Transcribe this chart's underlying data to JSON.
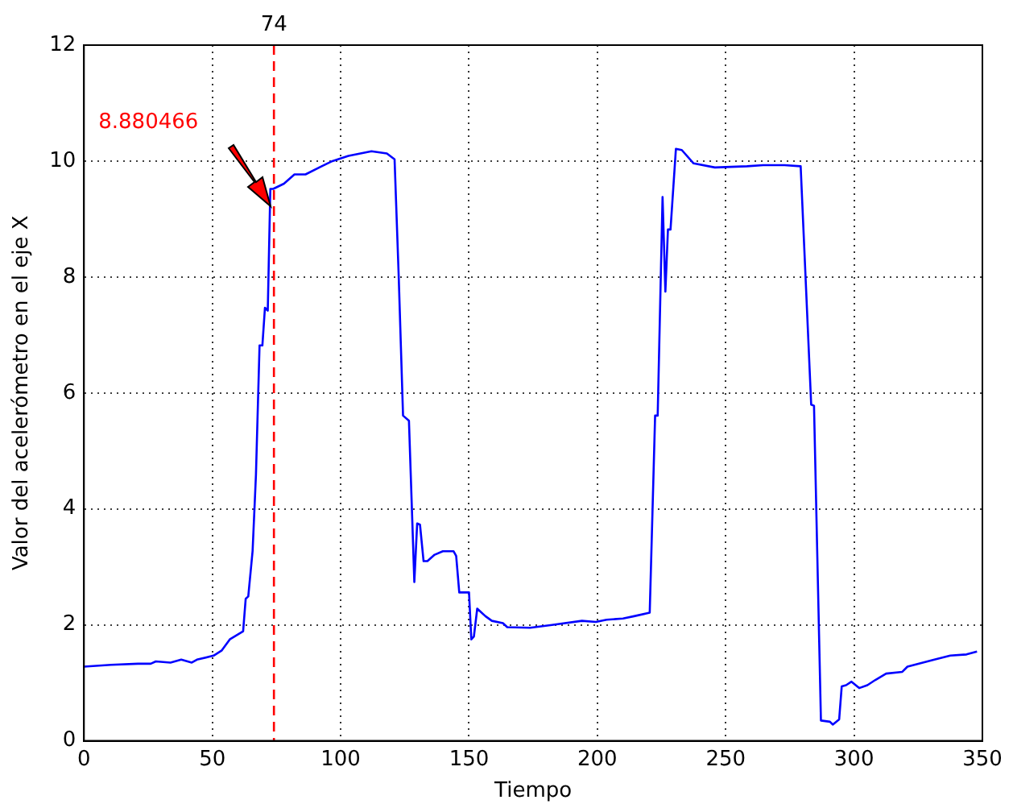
{
  "chart_data": {
    "type": "line",
    "xlabel": "Tiempo",
    "ylabel": "Valor del acelerómetro en el eje X",
    "xlim": [
      0,
      350
    ],
    "xticks": [
      0,
      50,
      100,
      150,
      200,
      250,
      300,
      350
    ],
    "ylim": [
      0,
      12
    ],
    "yticks": [
      0,
      2,
      4,
      6,
      8,
      10,
      12
    ],
    "grid": true,
    "legend": false,
    "marker": "none",
    "line_style": "solid",
    "series": [
      {
        "color": "#0000ff",
        "x": [
          0,
          10.5,
          21,
          26,
          28,
          33.7,
          37.9,
          42,
          44,
          50.5,
          53.7,
          56.8,
          62,
          63,
          64,
          65.7,
          67,
          68.4,
          69.5,
          70.5,
          71.6,
          72.6,
          73.7,
          77.9,
          82,
          86.3,
          92.6,
          96.8,
          103,
          112,
          118,
          121,
          122.6,
          124.3,
          126.6,
          128.7,
          129.8,
          130.9,
          132.3,
          133.8,
          136.6,
          139.8,
          144,
          145,
          146.2,
          150,
          150.9,
          151.9,
          153.2,
          156.4,
          158.9,
          163.2,
          164.9,
          173.8,
          182.3,
          194,
          199.4,
          203.6,
          210,
          214.3,
          220.4,
          222.5,
          223.5,
          225.4,
          226.5,
          227.5,
          228.5,
          230.6,
          232.9,
          237.5,
          245.8,
          258.3,
          264.6,
          272.9,
          279.2,
          283.3,
          284.4,
          287.1,
          290.6,
          291.7,
          294.2,
          295.2,
          296.9,
          299,
          302,
          305.2,
          308.3,
          312.5,
          318.8,
          320.8,
          325,
          331.3,
          337.5,
          343.8,
          347.9
        ],
        "values": [
          1.28,
          1.31,
          1.33,
          1.33,
          1.37,
          1.35,
          1.4,
          1.35,
          1.4,
          1.47,
          1.56,
          1.75,
          1.89,
          2.45,
          2.49,
          3.28,
          4.59,
          6.82,
          6.82,
          7.47,
          7.42,
          9.52,
          9.52,
          9.61,
          9.77,
          9.77,
          9.91,
          10.0,
          10.09,
          10.17,
          10.13,
          10.03,
          8.03,
          5.61,
          5.52,
          2.74,
          3.75,
          3.73,
          3.1,
          3.1,
          3.21,
          3.27,
          3.27,
          3.19,
          2.56,
          2.56,
          1.75,
          1.8,
          2.28,
          2.15,
          2.07,
          2.03,
          1.96,
          1.95,
          2.0,
          2.07,
          2.05,
          2.09,
          2.11,
          2.15,
          2.21,
          5.61,
          5.61,
          9.38,
          7.75,
          8.82,
          8.82,
          10.21,
          10.19,
          9.96,
          9.89,
          9.91,
          9.93,
          9.93,
          9.91,
          5.8,
          5.78,
          0.35,
          0.33,
          0.28,
          0.37,
          0.94,
          0.96,
          1.02,
          0.91,
          0.96,
          1.05,
          1.16,
          1.19,
          1.28,
          1.33,
          1.4,
          1.47,
          1.49,
          1.54
        ]
      }
    ],
    "ref_lines": [
      {
        "axis": "x",
        "value": 74,
        "label": "74",
        "color": "#ff0000",
        "line_style": "dashed"
      }
    ],
    "annotations": [
      "8.880466"
    ]
  }
}
